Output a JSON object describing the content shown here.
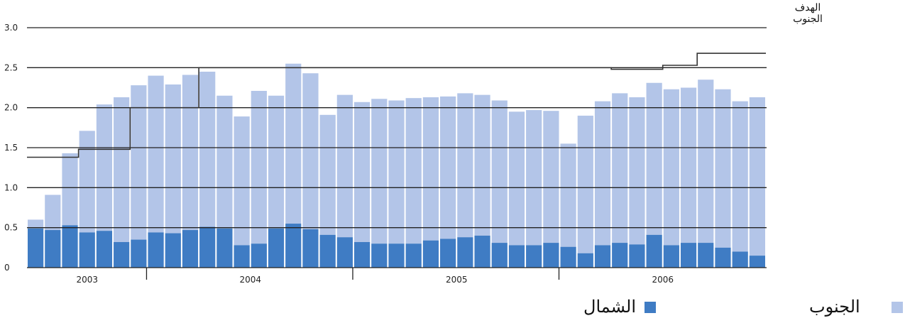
{
  "chart_data": {
    "type": "bar",
    "stacked": true,
    "y_ticks": [
      "0",
      "0.5",
      "1.0",
      "1.5",
      "2.0",
      "2.5",
      "3.0"
    ],
    "ylim": [
      0,
      3.0
    ],
    "years": [
      "2003",
      "2004",
      "2005",
      "2006"
    ],
    "series": [
      {
        "name": "الشمال",
        "color": "#3f7cc4",
        "values": [
          0.49,
          0.47,
          0.53,
          0.44,
          0.46,
          0.32,
          0.35,
          0.44,
          0.43,
          0.47,
          0.51,
          0.49,
          0.28,
          0.3,
          0.49,
          0.55,
          0.48,
          0.41,
          0.38,
          0.32,
          0.3,
          0.3,
          0.3,
          0.34,
          0.36,
          0.38,
          0.4,
          0.31,
          0.28,
          0.28,
          0.31,
          0.26,
          0.18,
          0.28,
          0.31,
          0.29,
          0.41,
          0.28,
          0.31,
          0.31,
          0.25,
          0.2,
          0.15
        ]
      },
      {
        "name": "الجنوب",
        "color": "#b3c5e8",
        "values": [
          0.11,
          0.44,
          0.9,
          1.27,
          1.58,
          1.81,
          1.93,
          1.96,
          1.86,
          1.94,
          1.94,
          1.66,
          1.61,
          1.91,
          1.66,
          2.0,
          1.95,
          1.5,
          1.78,
          1.75,
          1.81,
          1.79,
          1.82,
          1.79,
          1.78,
          1.8,
          1.76,
          1.78,
          1.67,
          1.69,
          1.65,
          1.29,
          1.72,
          1.8,
          1.87,
          1.84,
          1.9,
          1.95,
          1.94,
          2.04,
          1.98,
          1.88,
          1.98
        ]
      }
    ],
    "target": {
      "name": "الهدف الجنوب",
      "values": [
        1.38,
        1.38,
        1.38,
        1.48,
        1.48,
        1.48,
        2.0,
        2.0,
        2.0,
        2.0,
        2.5,
        2.5,
        2.5,
        2.5,
        2.5,
        2.5,
        2.5,
        2.5,
        2.5,
        2.5,
        2.5,
        2.5,
        2.5,
        2.5,
        2.5,
        2.5,
        2.5,
        2.5,
        2.5,
        2.5,
        2.5,
        2.5,
        2.5,
        2.5,
        2.48,
        2.48,
        2.48,
        2.53,
        2.53,
        2.68,
        2.68,
        2.68,
        2.68
      ]
    },
    "grid": true
  },
  "labels": {
    "target_line1": "الهدف",
    "target_line2": "الجنوب",
    "legend_south": "الجنوب",
    "legend_north": "الشمال"
  }
}
